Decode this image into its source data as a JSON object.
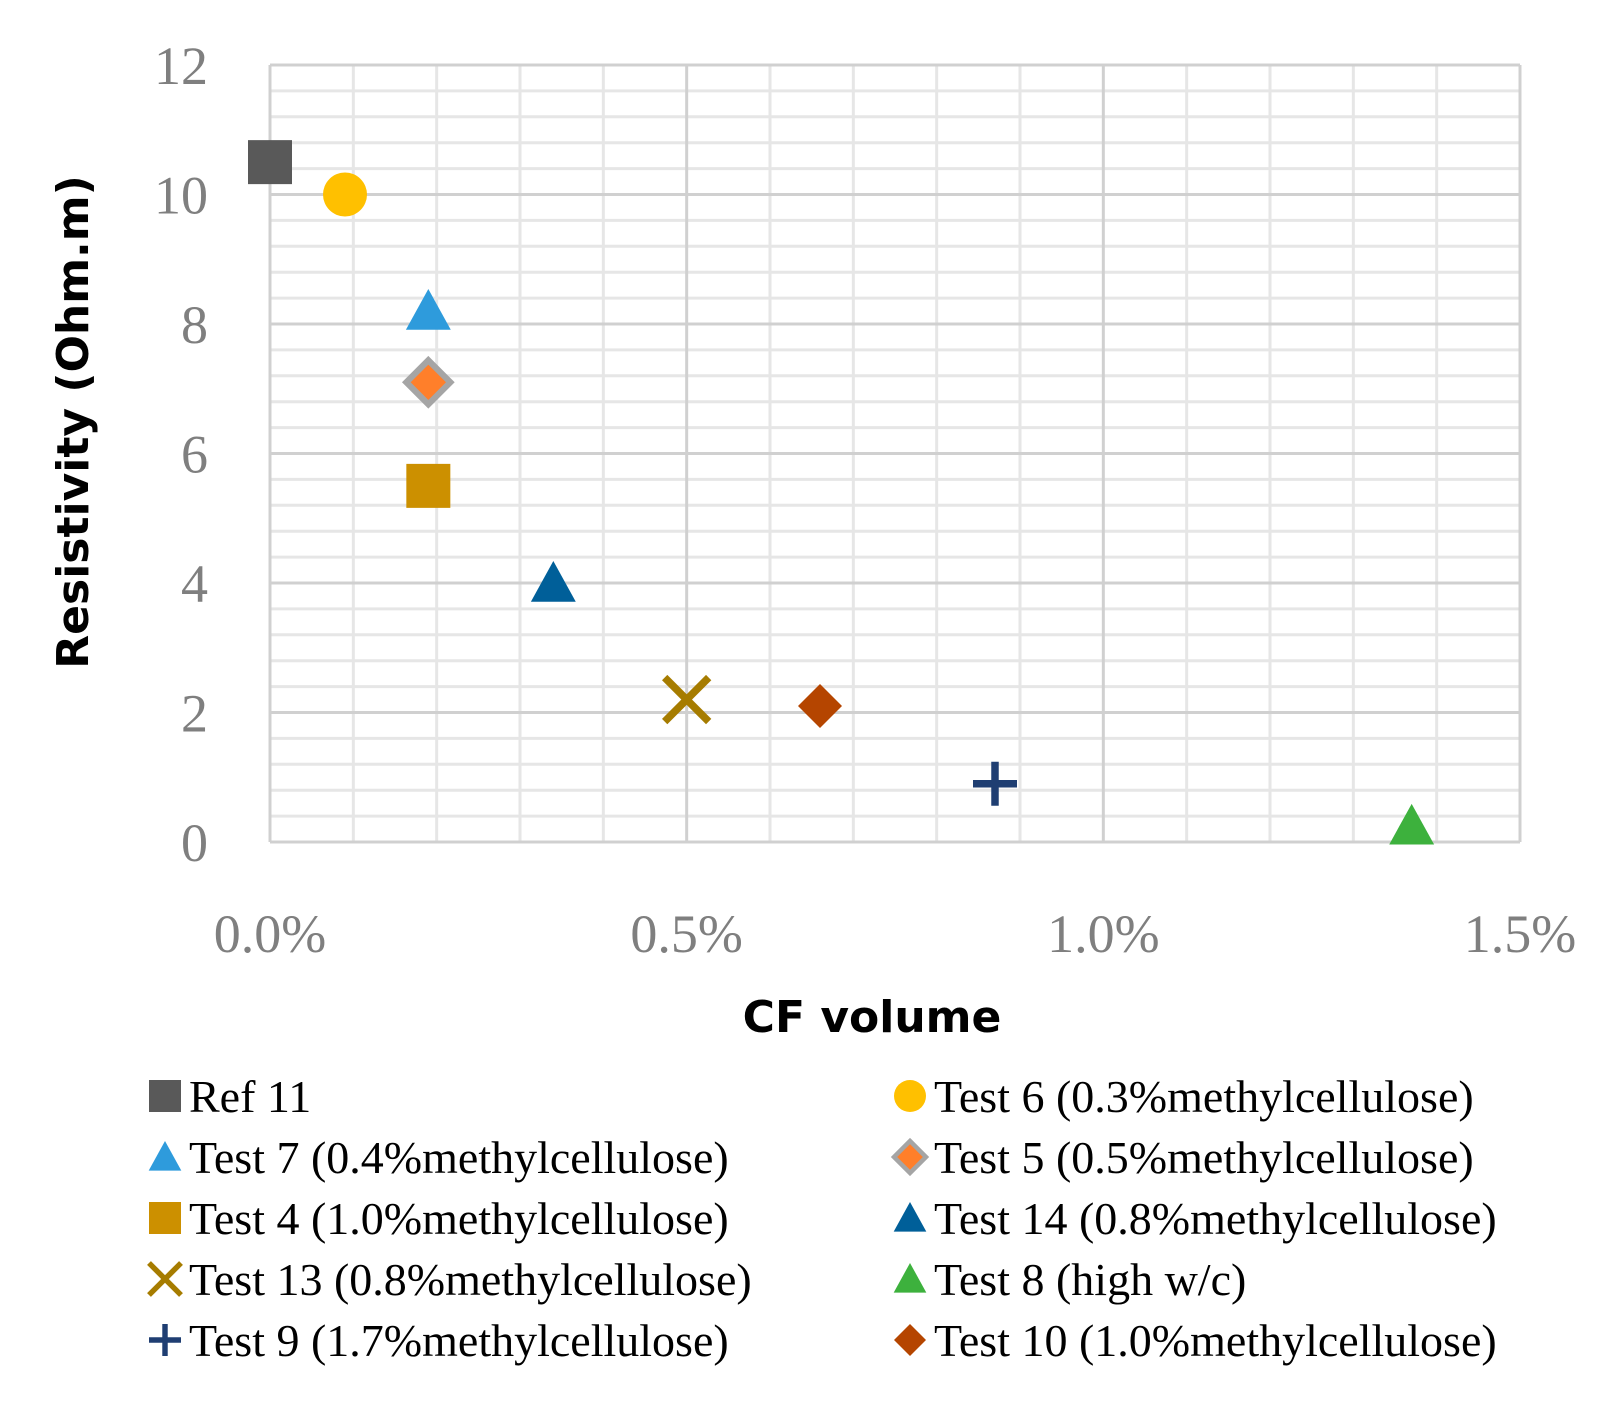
{
  "chart_data": {
    "type": "scatter",
    "xlabel": "CF volume",
    "ylabel": "Resistivity (Ohm.m)",
    "xlim": [
      0,
      0.015
    ],
    "ylim": [
      0,
      12
    ],
    "x_ticks": [
      "0.0%",
      "0.5%",
      "1.0%",
      "1.5%"
    ],
    "y_ticks": [
      "0",
      "2",
      "4",
      "6",
      "8",
      "10",
      "12"
    ],
    "grid": true,
    "legend_position": "bottom",
    "series": [
      {
        "name": "Ref 11",
        "marker": "square",
        "color": "#595959",
        "x": 0.0,
        "y": 10.5
      },
      {
        "name": "Test 6 (0.3%methylcellulose)",
        "marker": "circle",
        "color": "#ffc000",
        "x": 0.0009,
        "y": 10.0
      },
      {
        "name": "Test 7 (0.4%methylcellulose)",
        "marker": "triangle",
        "color": "#2e9bdc",
        "x": 0.0019,
        "y": 8.2
      },
      {
        "name": "Test 5 (0.5%methylcellulose)",
        "marker": "diamond-outlined",
        "color": "#ff7f2a",
        "stroke": "#a5a5a5",
        "x": 0.0019,
        "y": 7.1
      },
      {
        "name": "Test 4 (1.0%methylcellulose)",
        "marker": "square",
        "color": "#cc9000",
        "x": 0.0019,
        "y": 5.5
      },
      {
        "name": "Test 14 (0.8%methylcellulose)",
        "marker": "triangle",
        "color": "#005f99",
        "x": 0.0034,
        "y": 4.0
      },
      {
        "name": "Test 13 (0.8%methylcellulose)",
        "marker": "x",
        "color": "#a67c00",
        "x": 0.005,
        "y": 2.2
      },
      {
        "name": "Test 8 (high w/c)",
        "marker": "triangle",
        "color": "#3db13d",
        "x": 0.0137,
        "y": 0.25
      },
      {
        "name": "Test 9 (1.7%methylcellulose)",
        "marker": "plus",
        "color": "#1f3e72",
        "x": 0.0087,
        "y": 0.9
      },
      {
        "name": "Test 10 (1.0%methylcellulose)",
        "marker": "diamond",
        "color": "#b54500",
        "x": 0.0066,
        "y": 2.1
      }
    ]
  }
}
